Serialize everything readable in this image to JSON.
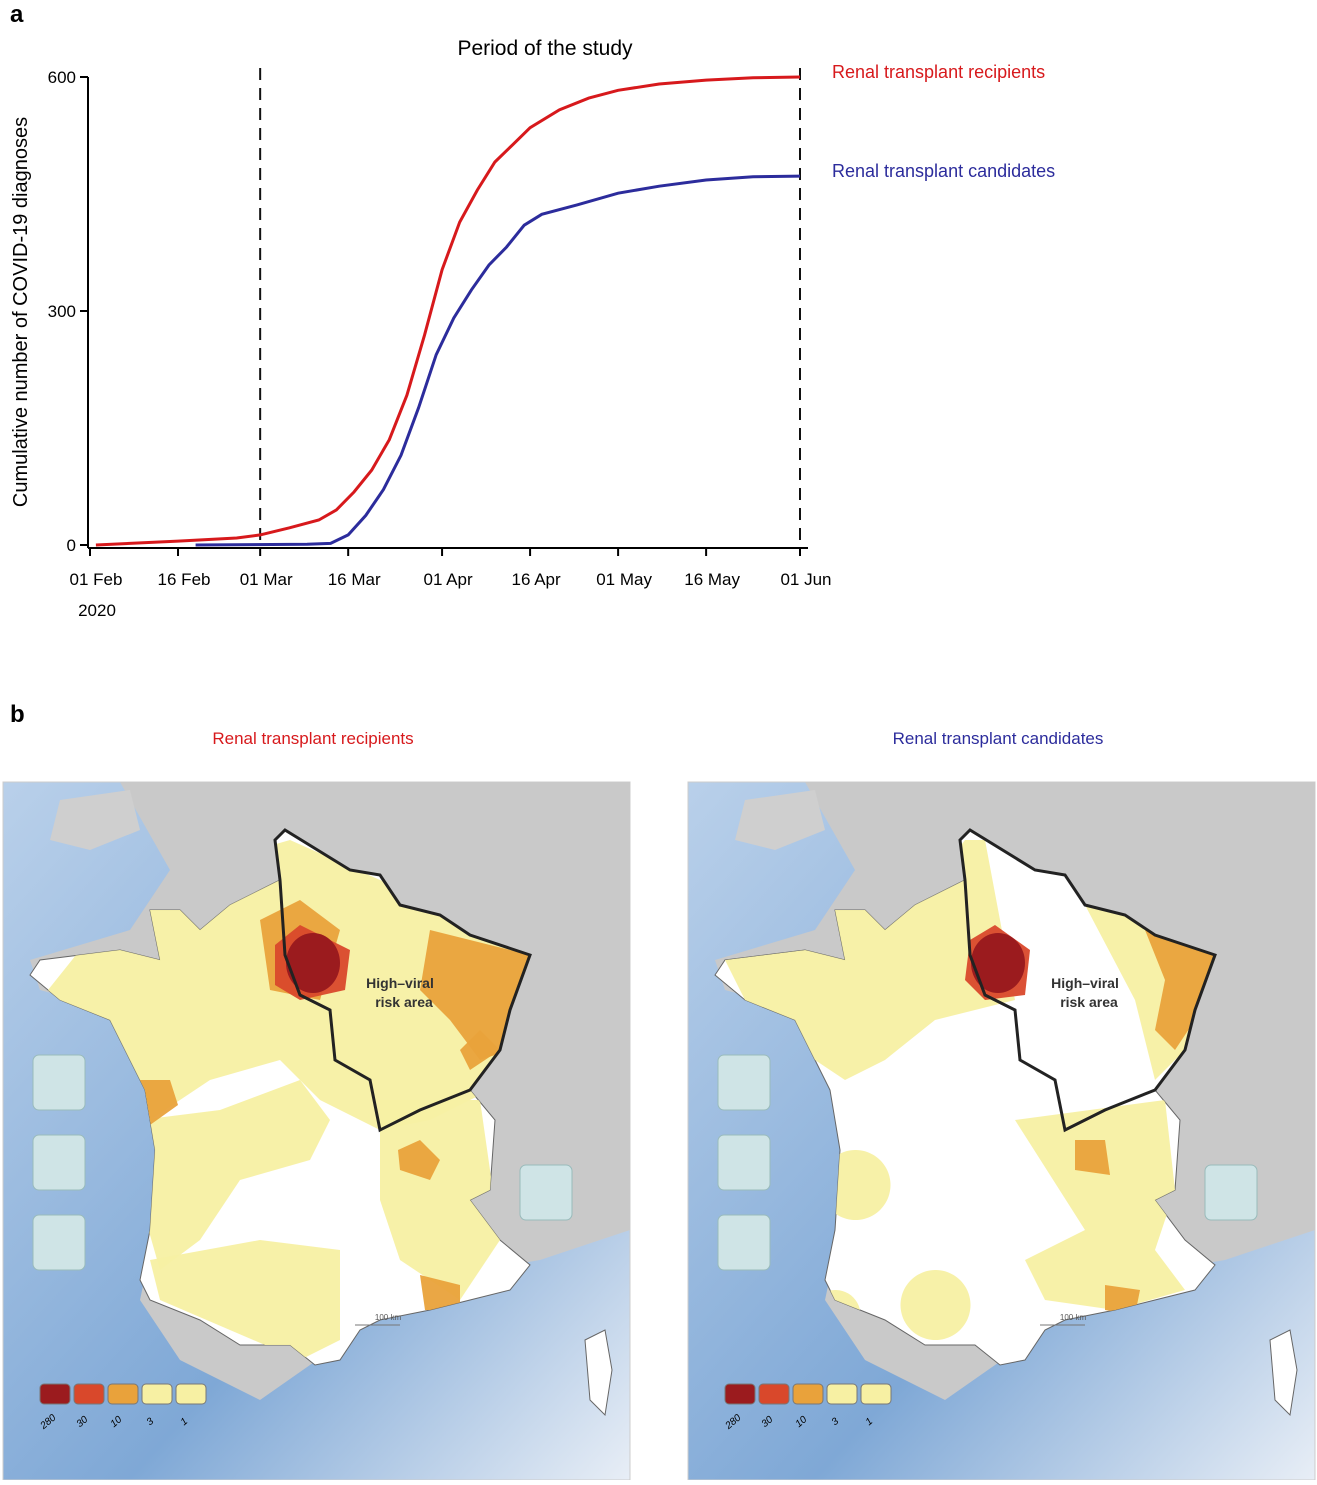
{
  "chart_data": {
    "type": "line",
    "panel_label": "a",
    "title": "Period of the study",
    "ylabel": "Cumulative number of COVID-19 diagnoses",
    "x_year_label": "2020",
    "xlim": [
      "2020-02-01",
      "2020-06-01"
    ],
    "ylim": [
      0,
      600
    ],
    "yticks": [
      0,
      300,
      600
    ],
    "xticks": [
      {
        "value": "2020-02-01",
        "label": "01 Feb"
      },
      {
        "value": "2020-02-16",
        "label": "16 Feb"
      },
      {
        "value": "2020-03-01",
        "label": "01 Mar"
      },
      {
        "value": "2020-03-16",
        "label": "16 Mar"
      },
      {
        "value": "2020-04-01",
        "label": "01 Apr"
      },
      {
        "value": "2020-04-16",
        "label": "16 Apr"
      },
      {
        "value": "2020-05-01",
        "label": "01 May"
      },
      {
        "value": "2020-05-16",
        "label": "16 May"
      },
      {
        "value": "2020-06-01",
        "label": "01 Jun"
      }
    ],
    "study_period": [
      "2020-03-01",
      "2020-06-01"
    ],
    "series": [
      {
        "name": "Renal transplant recipients",
        "color": "#d7191c",
        "x": [
          "2020-02-02",
          "2020-02-16",
          "2020-02-26",
          "2020-03-01",
          "2020-03-06",
          "2020-03-11",
          "2020-03-14",
          "2020-03-17",
          "2020-03-20",
          "2020-03-23",
          "2020-03-26",
          "2020-03-29",
          "2020-04-01",
          "2020-04-04",
          "2020-04-07",
          "2020-04-10",
          "2020-04-13",
          "2020-04-16",
          "2020-04-21",
          "2020-04-26",
          "2020-05-01",
          "2020-05-08",
          "2020-05-16",
          "2020-05-24",
          "2020-06-01"
        ],
        "values": [
          0,
          5,
          9,
          13,
          22,
          32,
          45,
          68,
          96,
          135,
          192,
          269,
          353,
          414,
          455,
          491,
          513,
          535,
          558,
          573,
          583,
          591,
          596,
          599,
          600
        ]
      },
      {
        "name": "Renal transplant candidates",
        "color": "#2c2c9c",
        "x": [
          "2020-02-19",
          "2020-03-09",
          "2020-03-13",
          "2020-03-16",
          "2020-03-19",
          "2020-03-22",
          "2020-03-25",
          "2020-03-28",
          "2020-03-31",
          "2020-04-03",
          "2020-04-06",
          "2020-04-09",
          "2020-04-12",
          "2020-04-15",
          "2020-04-18",
          "2020-04-24",
          "2020-05-01",
          "2020-05-08",
          "2020-05-16",
          "2020-05-24",
          "2020-06-01"
        ],
        "values": [
          0,
          1,
          2,
          13,
          38,
          71,
          115,
          176,
          244,
          291,
          327,
          359,
          382,
          410,
          424,
          436,
          451,
          460,
          468,
          472,
          473
        ]
      }
    ]
  },
  "maps": {
    "panel_label": "b",
    "panels": [
      {
        "title": "Renal transplant recipients",
        "annotation": [
          "High–viral",
          "risk area"
        ]
      },
      {
        "title": "Renal transplant candidates",
        "annotation": [
          "High–viral",
          "risk area"
        ]
      }
    ],
    "legend": [
      280,
      30,
      10,
      3,
      1
    ],
    "scale_label": "100 km"
  }
}
